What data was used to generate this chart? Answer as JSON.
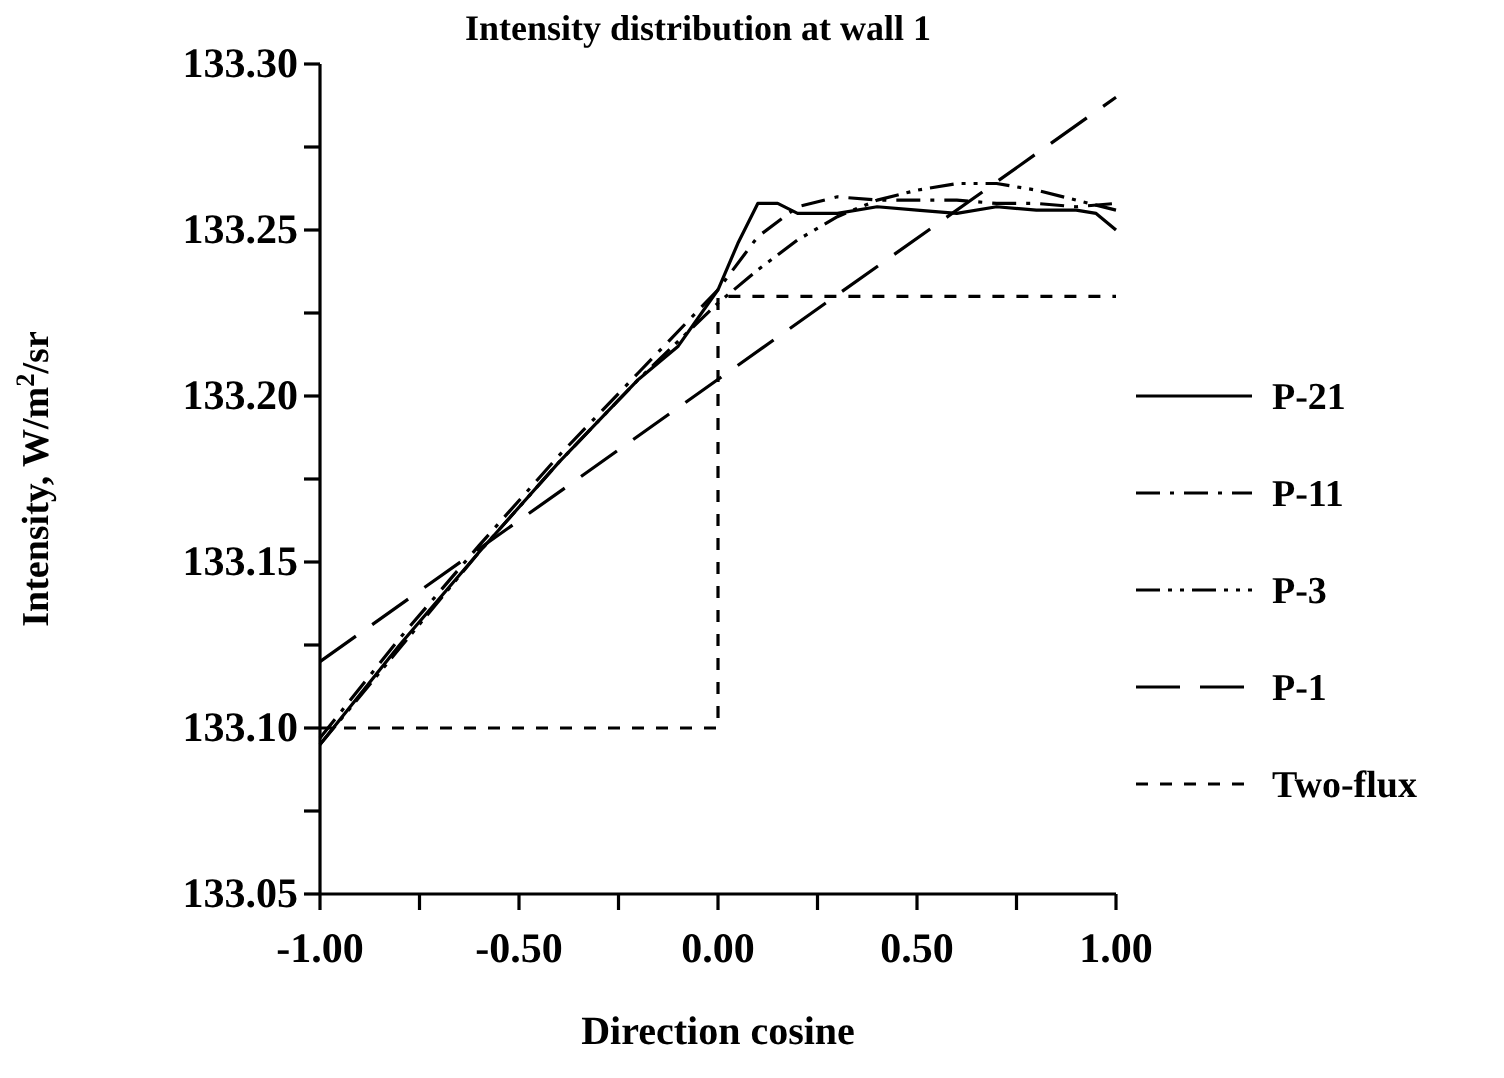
{
  "chart_data": {
    "type": "line",
    "title": "Intensity distribution at wall 1",
    "xlabel": "Direction cosine",
    "ylabel": "Intensity, W/m$^{2}$/sr",
    "xlim": [
      -1,
      1
    ],
    "ylim": [
      133.05,
      133.3
    ],
    "xticks": [
      {
        "value": -1,
        "label": "-1.00"
      },
      {
        "value": -0.75,
        "label": null
      },
      {
        "value": -0.5,
        "label": "-0.50"
      },
      {
        "value": -0.25,
        "label": null
      },
      {
        "value": 0,
        "label": "0.00"
      },
      {
        "value": 0.25,
        "label": null
      },
      {
        "value": 0.5,
        "label": "0.50"
      },
      {
        "value": 0.75,
        "label": null
      },
      {
        "value": 1,
        "label": "1.00"
      }
    ],
    "yticks": [
      {
        "value": 133.05,
        "label": "133.05"
      },
      {
        "value": 133.075,
        "label": null
      },
      {
        "value": 133.1,
        "label": "133.10"
      },
      {
        "value": 133.125,
        "label": null
      },
      {
        "value": 133.15,
        "label": "133.15"
      },
      {
        "value": 133.175,
        "label": null
      },
      {
        "value": 133.2,
        "label": "133.20"
      },
      {
        "value": 133.225,
        "label": null
      },
      {
        "value": 133.25,
        "label": "133.25"
      },
      {
        "value": 133.275,
        "label": null
      },
      {
        "value": 133.3,
        "label": "133.30"
      }
    ],
    "grid": false,
    "legend": "right",
    "marker": "none",
    "series": [
      {
        "name": "P-21",
        "color": "#000000",
        "line_style": "solid",
        "x": [
          -1,
          -0.8,
          -0.6,
          -0.4,
          -0.2,
          -0.1,
          0,
          0.05,
          0.1,
          0.15,
          0.2,
          0.3,
          0.4,
          0.5,
          0.6,
          0.7,
          0.8,
          0.9,
          0.95,
          1
        ],
        "values": [
          133.095,
          133.125,
          133.153,
          133.18,
          133.205,
          133.215,
          133.232,
          133.246,
          133.258,
          133.258,
          133.255,
          133.255,
          133.257,
          133.256,
          133.255,
          133.257,
          133.256,
          133.256,
          133.255,
          133.25
        ]
      },
      {
        "name": "P-11",
        "color": "#000000",
        "line_style": "dashdot",
        "x": [
          -1,
          -0.8,
          -0.6,
          -0.4,
          -0.2,
          0,
          0.1,
          0.2,
          0.3,
          0.4,
          0.5,
          0.6,
          0.7,
          0.8,
          0.9,
          1
        ],
        "values": [
          133.097,
          133.127,
          133.155,
          133.182,
          133.207,
          133.232,
          133.248,
          133.257,
          133.26,
          133.259,
          133.259,
          133.259,
          133.258,
          133.258,
          133.257,
          133.258
        ]
      },
      {
        "name": "P-3",
        "color": "#000000",
        "line_style": "dashdotdot",
        "x": [
          -1,
          -0.8,
          -0.6,
          -0.4,
          -0.2,
          0,
          0.1,
          0.2,
          0.3,
          0.4,
          0.5,
          0.6,
          0.7,
          0.8,
          0.9,
          1
        ],
        "values": [
          133.095,
          133.124,
          133.153,
          133.18,
          133.205,
          133.228,
          133.238,
          133.247,
          133.254,
          133.259,
          133.262,
          133.264,
          133.264,
          133.262,
          133.259,
          133.256
        ]
      },
      {
        "name": "P-1",
        "color": "#000000",
        "line_style": "longdash",
        "x": [
          -1,
          1
        ],
        "values": [
          133.12,
          133.29
        ]
      },
      {
        "name": "Two-flux",
        "color": "#000000",
        "line_style": "dashed",
        "x": [
          -1,
          0,
          0,
          1
        ],
        "values": [
          133.1,
          133.1,
          133.23,
          133.23
        ]
      }
    ]
  }
}
